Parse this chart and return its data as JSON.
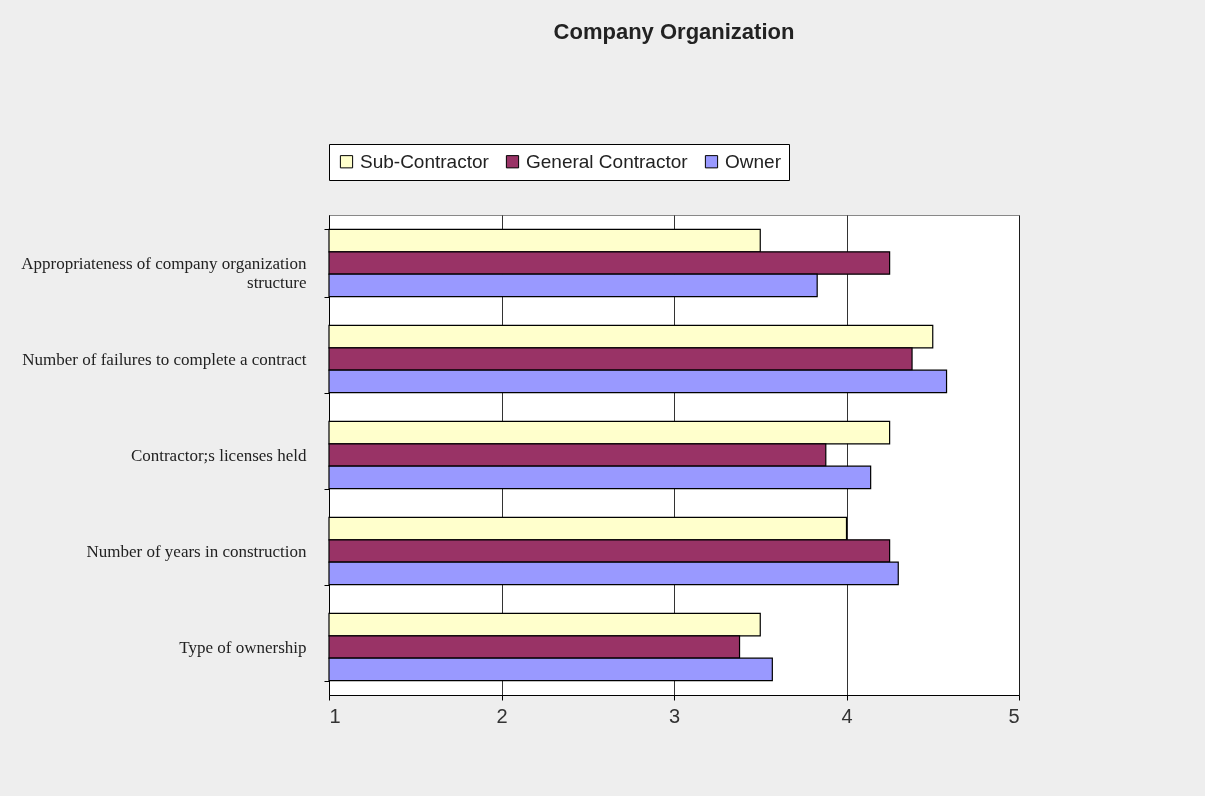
{
  "chart_data": {
    "type": "bar",
    "orientation": "horizontal",
    "title": "Company Organization",
    "categories": [
      "Appropriateness of company organization structure",
      "Number of failures to complete a contract",
      "Contractor;s licenses held",
      "Number of years in construction",
      "Type of ownership"
    ],
    "series": [
      {
        "name": "Sub-Contractor",
        "color": "#ffffcc",
        "values": [
          3.5,
          4.5,
          4.25,
          4.0,
          3.5
        ]
      },
      {
        "name": "General Contractor",
        "color": "#993366",
        "values": [
          4.25,
          4.38,
          3.88,
          4.25,
          3.38
        ]
      },
      {
        "name": "Owner",
        "color": "#9999ff",
        "values": [
          3.83,
          4.58,
          4.14,
          4.3,
          3.57
        ]
      }
    ],
    "xlim": [
      1,
      5
    ],
    "xticks": [
      1,
      2,
      3,
      4,
      5
    ],
    "grid": "x",
    "legend": "top"
  }
}
